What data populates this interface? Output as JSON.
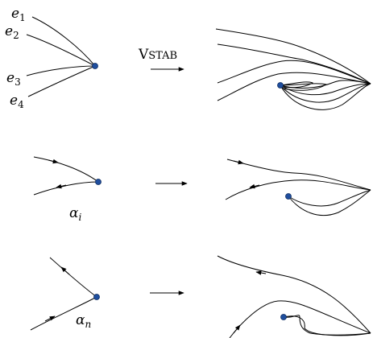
{
  "top_row": {
    "edge_labels": [
      {
        "base": "e",
        "sub": "1"
      },
      {
        "base": "e",
        "sub": "2"
      },
      {
        "base": "e",
        "sub": "3"
      },
      {
        "base": "e",
        "sub": "4"
      }
    ],
    "operation_label_initial": "V",
    "operation_label_rest": "STAB"
  },
  "middle_row": {
    "label": {
      "base": "α",
      "sub": "i"
    }
  },
  "bottom_row": {
    "label": {
      "base": "α",
      "sub": "n"
    }
  },
  "colors": {
    "vertex_fill": "#1f4e9e",
    "stroke": "#000000"
  }
}
